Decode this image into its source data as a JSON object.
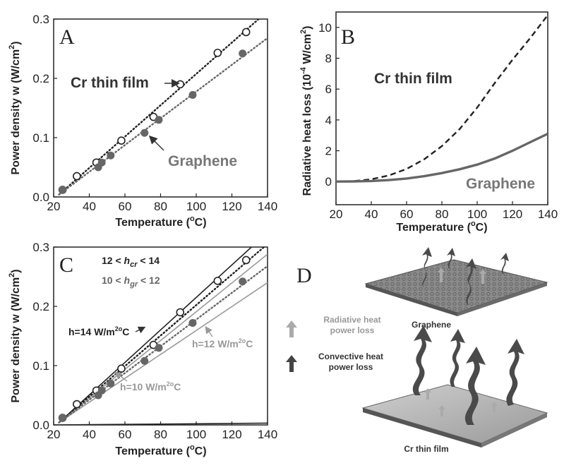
{
  "chart_data": [
    {
      "panel": "A",
      "type": "scatter",
      "xlabel": "Temperature (°C)",
      "ylabel": "Power density w (W/cm²)",
      "xlim": [
        20,
        140
      ],
      "ylim": [
        0,
        0.3
      ],
      "xticks": [
        20,
        40,
        60,
        80,
        100,
        120,
        140
      ],
      "yticks": [
        0.0,
        0.1,
        0.2,
        0.3
      ],
      "ytick_labels": [
        "0.0",
        "0.1",
        "0.2",
        "0.3"
      ],
      "series": [
        {
          "name": "Cr thin film",
          "marker": "open-circle",
          "fit": "dotted",
          "color": "#222222",
          "points": [
            [
              25,
              0.012
            ],
            [
              33,
              0.035
            ],
            [
              44,
              0.058
            ],
            [
              58,
              0.095
            ],
            [
              76,
              0.135
            ],
            [
              91,
              0.19
            ],
            [
              112,
              0.243
            ],
            [
              128,
              0.278
            ]
          ],
          "fit_line": [
            [
              23,
              0.004
            ],
            [
              135,
              0.3
            ]
          ]
        },
        {
          "name": "Graphene",
          "marker": "filled-circle",
          "fit": "dotted",
          "color": "#666666",
          "points": [
            [
              25,
              0.012
            ],
            [
              45,
              0.05
            ],
            [
              47,
              0.058
            ],
            [
              52,
              0.07
            ],
            [
              71,
              0.108
            ],
            [
              79,
              0.13
            ],
            [
              98,
              0.172
            ],
            [
              126,
              0.242
            ]
          ],
          "fit_line": [
            [
              23,
              0.004
            ],
            [
              140,
              0.268
            ]
          ]
        }
      ],
      "annotations": [
        {
          "text": "Cr thin film",
          "color": "#333333"
        },
        {
          "text": "Graphene",
          "color": "#777777"
        }
      ]
    },
    {
      "panel": "B",
      "type": "line",
      "xlabel": "Temperature (°C)",
      "ylabel": "Radiative heat loss (10⁻⁴ W/cm²)",
      "xlim": [
        20,
        140
      ],
      "ylim": [
        -1.5,
        11
      ],
      "xticks": [
        20,
        40,
        60,
        80,
        100,
        120,
        140
      ],
      "yticks": [
        0,
        2,
        4,
        6,
        8,
        10
      ],
      "series": [
        {
          "name": "Cr thin film",
          "style": "dashed",
          "color": "#222222",
          "x": [
            20,
            30,
            40,
            50,
            60,
            70,
            80,
            90,
            100,
            110,
            120,
            130,
            140
          ],
          "y": [
            0,
            0.03,
            0.15,
            0.4,
            0.82,
            1.45,
            2.3,
            3.4,
            4.8,
            6.4,
            7.9,
            9.3,
            10.8
          ]
        },
        {
          "name": "Graphene",
          "style": "solid",
          "color": "#666666",
          "x": [
            20,
            30,
            40,
            50,
            60,
            70,
            80,
            90,
            100,
            110,
            120,
            130,
            140
          ],
          "y": [
            0,
            0.01,
            0.04,
            0.1,
            0.2,
            0.35,
            0.55,
            0.8,
            1.1,
            1.5,
            2.0,
            2.55,
            3.1
          ]
        }
      ],
      "annotations": [
        {
          "text": "Cr thin film",
          "color": "#333333"
        },
        {
          "text": "Graphene",
          "color": "#777777"
        }
      ]
    },
    {
      "panel": "C",
      "type": "scatter",
      "xlabel": "Temperature (°C)",
      "ylabel": "Power density w (W/cm²)",
      "xlim": [
        20,
        140
      ],
      "ylim": [
        0,
        0.3
      ],
      "xticks": [
        20,
        40,
        60,
        80,
        100,
        120,
        140
      ],
      "yticks": [
        0.0,
        0.1,
        0.2,
        0.3
      ],
      "ytick_labels": [
        "0.0",
        "0.1",
        "0.2",
        "0.3"
      ],
      "series": [
        {
          "name": "Cr thin film",
          "marker": "open-circle",
          "fit": "dotted",
          "color": "#222222",
          "points": [
            [
              25,
              0.012
            ],
            [
              33,
              0.035
            ],
            [
              44,
              0.058
            ],
            [
              58,
              0.095
            ],
            [
              76,
              0.135
            ],
            [
              91,
              0.19
            ],
            [
              112,
              0.243
            ],
            [
              128,
              0.278
            ]
          ],
          "fit_line": [
            [
              23,
              0.004
            ],
            [
              138,
              0.3
            ]
          ]
        },
        {
          "name": "Graphene",
          "marker": "filled-circle",
          "fit": "dotted",
          "color": "#666666",
          "points": [
            [
              25,
              0.012
            ],
            [
              45,
              0.05
            ],
            [
              47,
              0.058
            ],
            [
              52,
              0.07
            ],
            [
              71,
              0.108
            ],
            [
              79,
              0.13
            ],
            [
              98,
              0.172
            ],
            [
              126,
              0.242
            ]
          ],
          "fit_line": [
            [
              23,
              0.004
            ],
            [
              140,
              0.268
            ]
          ]
        }
      ],
      "model_lines": [
        {
          "name": "h=14 W/m²°C",
          "color": "#222222",
          "points": [
            [
              23,
              0.004
            ],
            [
              131,
              0.3
            ]
          ]
        },
        {
          "name": "h=12 W/m²°C",
          "color": "#999999",
          "points": [
            [
              23,
              0.004
            ],
            [
              140,
              0.288
            ]
          ]
        },
        {
          "name": "h=10 W/m²°C",
          "color": "#999999",
          "points": [
            [
              23,
              0.004
            ],
            [
              140,
              0.24
            ]
          ]
        },
        {
          "name": "baseline",
          "color": "#222222",
          "points": [
            [
              20,
              0.0
            ],
            [
              140,
              0.003
            ]
          ]
        }
      ],
      "annotations": [
        {
          "text": "12 < h_cr < 14",
          "color": "#222222"
        },
        {
          "text": "10 < h_gr < 12",
          "color": "#666666"
        },
        {
          "text": "h=14 W/m²°C",
          "color": "#222222"
        },
        {
          "text": "h=12 W/m²°C",
          "color": "#999999"
        },
        {
          "text": "h=10 W/m²°C",
          "color": "#999999"
        }
      ]
    }
  ],
  "panels": {
    "A": {
      "letter": "A"
    },
    "B": {
      "letter": "B"
    },
    "C": {
      "letter": "C"
    },
    "D": {
      "letter": "D"
    }
  },
  "labels": {
    "xlabel_main": "Temperature (",
    "xlabel_degree": "o",
    "xlabel_end": "C)",
    "ylabel_power_main": "Power density w (W/cm",
    "ylabel_power_sup": "2",
    "ylabel_power_end": ")",
    "ylabel_rad_main": "Radiative heat loss (10",
    "ylabel_rad_sup": "-4",
    "ylabel_rad_mid": " W/cm",
    "ylabel_rad_sup2": "2",
    "ylabel_rad_end": ")",
    "cr_thin_film": "Cr thin film",
    "graphene": "Graphene",
    "h_cr_pre": "12 < ",
    "h_cr_h": "h",
    "h_cr_sub": "cr",
    "h_cr_post": " < 14",
    "h_gr_pre": "10 < ",
    "h_gr_h": "h",
    "h_gr_sub": "gr",
    "h_gr_post": " < 12",
    "h14_main": "h=14 W/m",
    "h14_sup": "2o",
    "h14_end": "C",
    "h12_main": "h=12 W/m",
    "h12_sup": "2o",
    "h12_end": "C",
    "h10_main": "h=10 W/m",
    "h10_sup": "2o",
    "h10_end": "C"
  },
  "diagram_d": {
    "top_plate_label": "Graphene",
    "bottom_plate_label": "Cr thin film",
    "legend_radiative_line1": "Radiative heat",
    "legend_radiative_line2": "power loss",
    "legend_convective_line1": "Convective heat",
    "legend_convective_line2": "power loss",
    "radiative_color": "#aaaaaa",
    "convective_color": "#444444"
  }
}
